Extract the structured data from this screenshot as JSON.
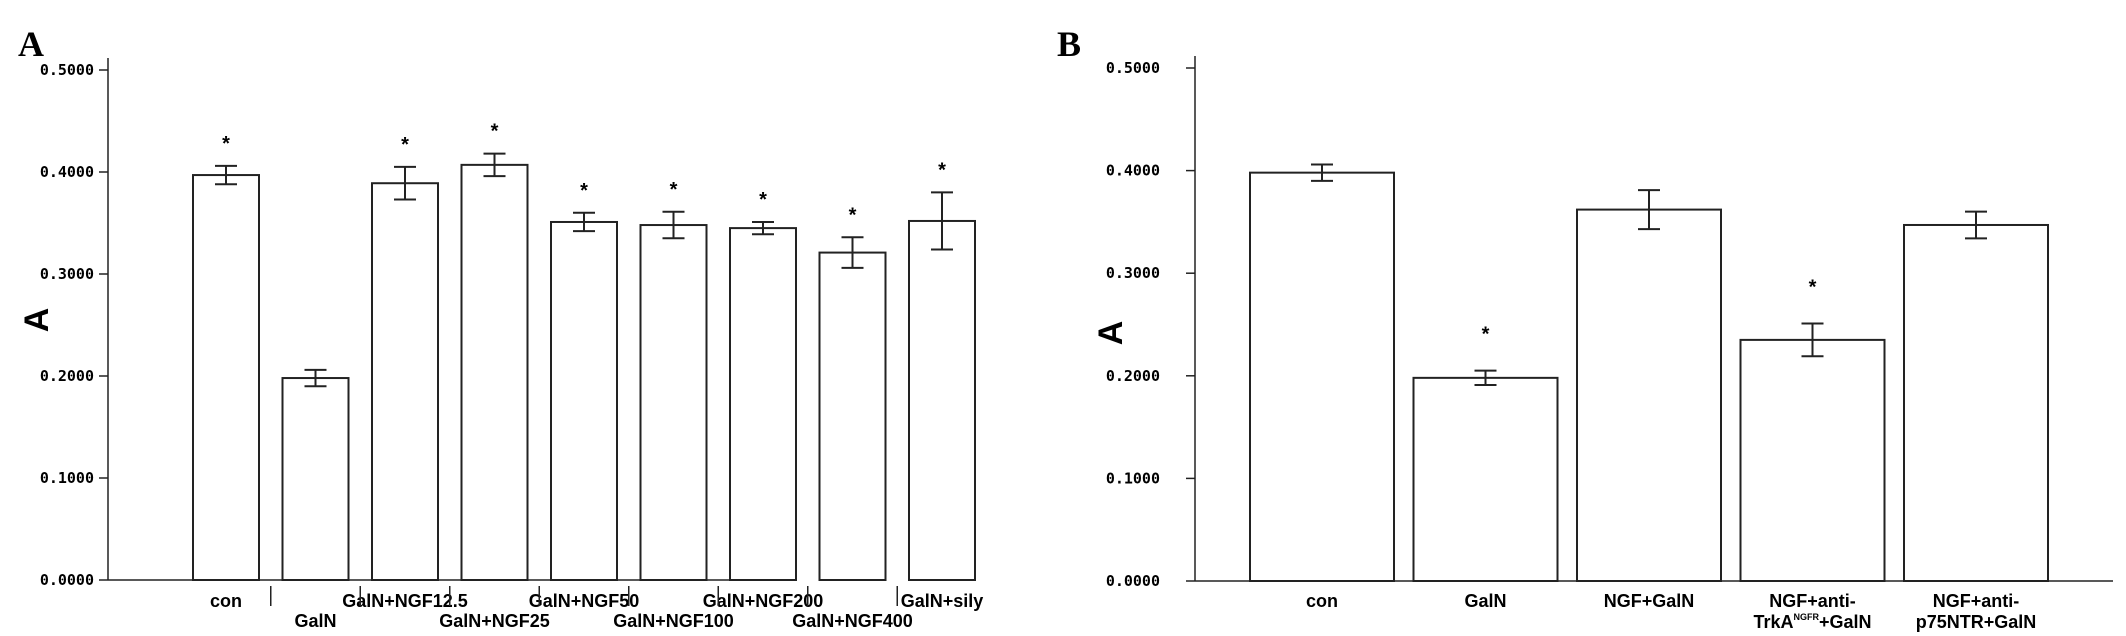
{
  "chart_data": [
    {
      "type": "bar",
      "panel": "A",
      "ylabel": "A",
      "ylim": [
        0,
        0.5
      ],
      "yticks": [
        "0.0000",
        "0.1000",
        "0.2000",
        "0.3000",
        "0.4000",
        "0.5000"
      ],
      "categories": [
        "con",
        "GalN",
        "GalN+NGF12.5",
        "GalN+NGF25",
        "GalN+NGF50",
        "GalN+NGF100",
        "GalN+NGF200",
        "GalN+NGF400",
        "GalN+sily"
      ],
      "values": [
        0.397,
        0.198,
        0.389,
        0.407,
        0.351,
        0.348,
        0.345,
        0.321,
        0.352
      ],
      "errors": [
        0.009,
        0.008,
        0.016,
        0.011,
        0.009,
        0.013,
        0.006,
        0.015,
        0.028
      ],
      "significant": [
        true,
        false,
        true,
        true,
        true,
        true,
        true,
        true,
        true
      ],
      "significance_mark": "*"
    },
    {
      "type": "bar",
      "panel": "B",
      "ylabel": "A",
      "ylim": [
        0,
        0.5
      ],
      "yticks": [
        "0.0000",
        "0.1000",
        "0.2000",
        "0.3000",
        "0.4000",
        "0.5000"
      ],
      "categories": [
        "con",
        "GalN",
        "NGF+GalN",
        "NGF+anti-TrkA NGFR+GalN",
        "NGF+anti-p75NTR+GalN"
      ],
      "category_label_lines": [
        [
          [
            "con",
            ""
          ]
        ],
        [
          [
            "GalN",
            ""
          ]
        ],
        [
          [
            "NGF+GalN",
            ""
          ]
        ],
        [
          [
            "NGF+anti-",
            ""
          ],
          [
            "TrkA",
            "NGFR",
            "+GalN"
          ]
        ],
        [
          [
            "NGF+anti-",
            ""
          ],
          [
            "p75NTR+GalN",
            ""
          ]
        ]
      ],
      "values": [
        0.398,
        0.198,
        0.362,
        0.235,
        0.347
      ],
      "errors": [
        0.008,
        0.007,
        0.019,
        0.016,
        0.013
      ],
      "significant": [
        false,
        true,
        false,
        true,
        false
      ],
      "significance_mark": "*"
    }
  ]
}
